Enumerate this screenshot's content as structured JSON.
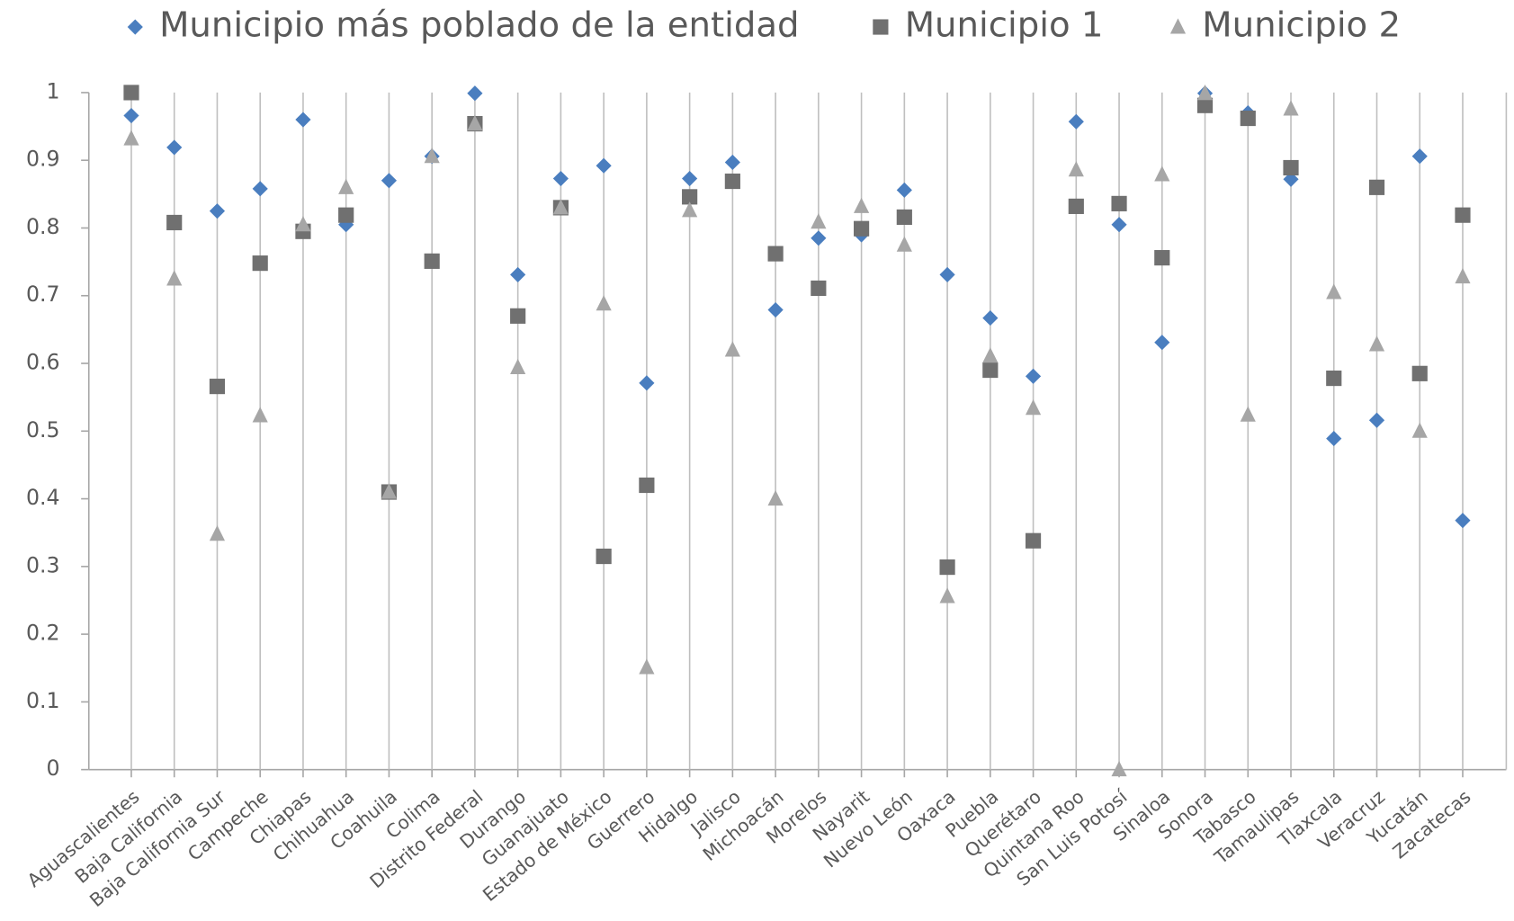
{
  "chart_data": {
    "type": "scatter",
    "categories": [
      "Aguascalientes",
      "Baja California",
      "Baja California Sur",
      "Campeche",
      "Chiapas",
      "Chihuahua",
      "Coahuila",
      "Colima",
      "Distrito Federal",
      "Durango",
      "Guanajuato",
      "Estado de México",
      "Guerrero",
      "Hidalgo",
      "Jalisco",
      "Michoacán",
      "Morelos",
      "Nayarit",
      "Nuevo León",
      "Oaxaca",
      "Puebla",
      "Querétaro",
      "Quintana Roo",
      "San Luis Potosí",
      "Sinaloa",
      "Sonora",
      "Tabasco",
      "Tamaulipas",
      "Tlaxcala",
      "Veracruz",
      "Yucatán",
      "Zacatecas"
    ],
    "series": [
      {
        "name": "Municipio más poblado de la entidad",
        "color": "#4a7ebf",
        "marker": "diamond",
        "values": [
          0.966,
          0.919,
          0.825,
          0.858,
          0.96,
          0.805,
          0.87,
          0.906,
          0.999,
          0.731,
          0.873,
          0.892,
          0.571,
          0.873,
          0.897,
          0.679,
          0.785,
          0.79,
          0.856,
          0.731,
          0.667,
          0.581,
          0.957,
          0.805,
          0.631,
          0.999,
          0.97,
          0.872,
          0.489,
          0.516,
          0.906,
          0.368
        ]
      },
      {
        "name": "Municipio 1",
        "color": "#707070",
        "marker": "square",
        "values": [
          1.0,
          0.808,
          0.566,
          0.748,
          0.795,
          0.819,
          0.41,
          0.751,
          0.954,
          0.67,
          0.83,
          0.315,
          0.42,
          0.846,
          0.869,
          0.762,
          0.711,
          0.799,
          0.816,
          0.299,
          0.59,
          0.338,
          0.832,
          0.836,
          0.756,
          0.981,
          0.962,
          0.889,
          0.578,
          0.86,
          0.585,
          0.819
        ]
      },
      {
        "name": "Municipio 2",
        "color": "#a6a6a6",
        "marker": "triangle",
        "values": [
          0.932,
          0.725,
          0.348,
          0.523,
          0.805,
          0.86,
          0.41,
          0.906,
          0.954,
          0.594,
          0.83,
          0.688,
          0.151,
          0.826,
          0.62,
          0.4,
          0.809,
          0.832,
          0.775,
          0.256,
          0.611,
          0.534,
          0.886,
          0.0,
          0.879,
          0.999,
          0.524,
          0.976,
          0.705,
          0.628,
          0.5,
          0.728
        ]
      }
    ],
    "ylim": [
      0,
      1
    ],
    "yticks": [
      0,
      0.1,
      0.2,
      0.3,
      0.4,
      0.5,
      0.6,
      0.7,
      0.8,
      0.9,
      1
    ],
    "grid": true
  }
}
